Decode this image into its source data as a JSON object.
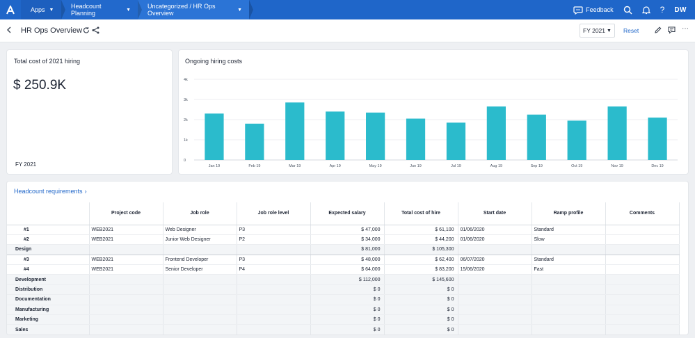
{
  "topbar": {
    "breadcrumbs": [
      "Apps",
      "Headcount Planning",
      "Uncategorized / HR Ops Overview"
    ],
    "feedback_label": "Feedback",
    "avatar_initials": "DW",
    "help_label": "?"
  },
  "page": {
    "title": "HR Ops Overview",
    "fy_select": "FY 2021",
    "reset_label": "Reset"
  },
  "kpi": {
    "title": "Total cost of 2021 hiring",
    "value": "$ 250.9K",
    "footer": "FY 2021"
  },
  "chart": {
    "title": "Ongoing hiring costs"
  },
  "chart_data": {
    "type": "bar",
    "title": "Ongoing hiring costs",
    "categories": [
      "Jan 19",
      "Feb 19",
      "Mar 19",
      "Apr 19",
      "May 19",
      "Jun 19",
      "Jul 19",
      "Aug 19",
      "Sep 19",
      "Oct 19",
      "Nov 19",
      "Dec 19"
    ],
    "values": [
      2300,
      1800,
      2850,
      2400,
      2350,
      2050,
      1850,
      2650,
      2250,
      1950,
      2650,
      2100
    ],
    "yticks": [
      "0",
      "1k",
      "2k",
      "3k",
      "4k"
    ],
    "ylim": [
      0,
      4000
    ],
    "bar_color": "#2bbbcc",
    "grid": true
  },
  "table": {
    "title": "Headcount requirements",
    "columns": [
      "",
      "Project code",
      "Job role",
      "Job role level",
      "Expected salary",
      "Total cost of hire",
      "Start date",
      "Ramp profile",
      "Comments"
    ],
    "rows": [
      {
        "type": "item",
        "cells": [
          "#1",
          "WEB2021",
          "Web Designer",
          "P3",
          "$ 47,000",
          "$ 61,100",
          "01/06/2020",
          "Standard",
          ""
        ]
      },
      {
        "type": "item",
        "cells": [
          "#2",
          "WEB2021",
          "Junior Web Designer",
          "P2",
          "$ 34,000",
          "$ 44,200",
          "01/06/2020",
          "Slow",
          ""
        ]
      },
      {
        "type": "group",
        "cells": [
          "Design",
          "",
          "",
          "",
          "$ 81,000",
          "$ 105,300",
          "",
          "",
          ""
        ]
      },
      {
        "type": "item",
        "cells": [
          "#3",
          "WEB2021",
          "Frontend Developer",
          "P3",
          "$ 48,000",
          "$ 62,400",
          "06/07/2020",
          "Standard",
          ""
        ]
      },
      {
        "type": "item",
        "cells": [
          "#4",
          "WEB2021",
          "Senior Developer",
          "P4",
          "$ 64,000",
          "$ 83,200",
          "15/06/2020",
          "Fast",
          ""
        ]
      },
      {
        "type": "group",
        "cells": [
          "Development",
          "",
          "",
          "",
          "$ 112,000",
          "$ 145,600",
          "",
          "",
          ""
        ]
      },
      {
        "type": "group",
        "cells": [
          "Distribution",
          "",
          "",
          "",
          "$ 0",
          "$ 0",
          "",
          "",
          ""
        ]
      },
      {
        "type": "group",
        "cells": [
          "Documentation",
          "",
          "",
          "",
          "$ 0",
          "$ 0",
          "",
          "",
          ""
        ]
      },
      {
        "type": "group",
        "cells": [
          "Manufacturing",
          "",
          "",
          "",
          "$ 0",
          "$ 0",
          "",
          "",
          ""
        ]
      },
      {
        "type": "group",
        "cells": [
          "Marketing",
          "",
          "",
          "",
          "$ 0",
          "$ 0",
          "",
          "",
          ""
        ]
      },
      {
        "type": "group",
        "cells": [
          "Sales",
          "",
          "",
          "",
          "$ 0",
          "$ 0",
          "",
          "",
          ""
        ]
      }
    ]
  }
}
